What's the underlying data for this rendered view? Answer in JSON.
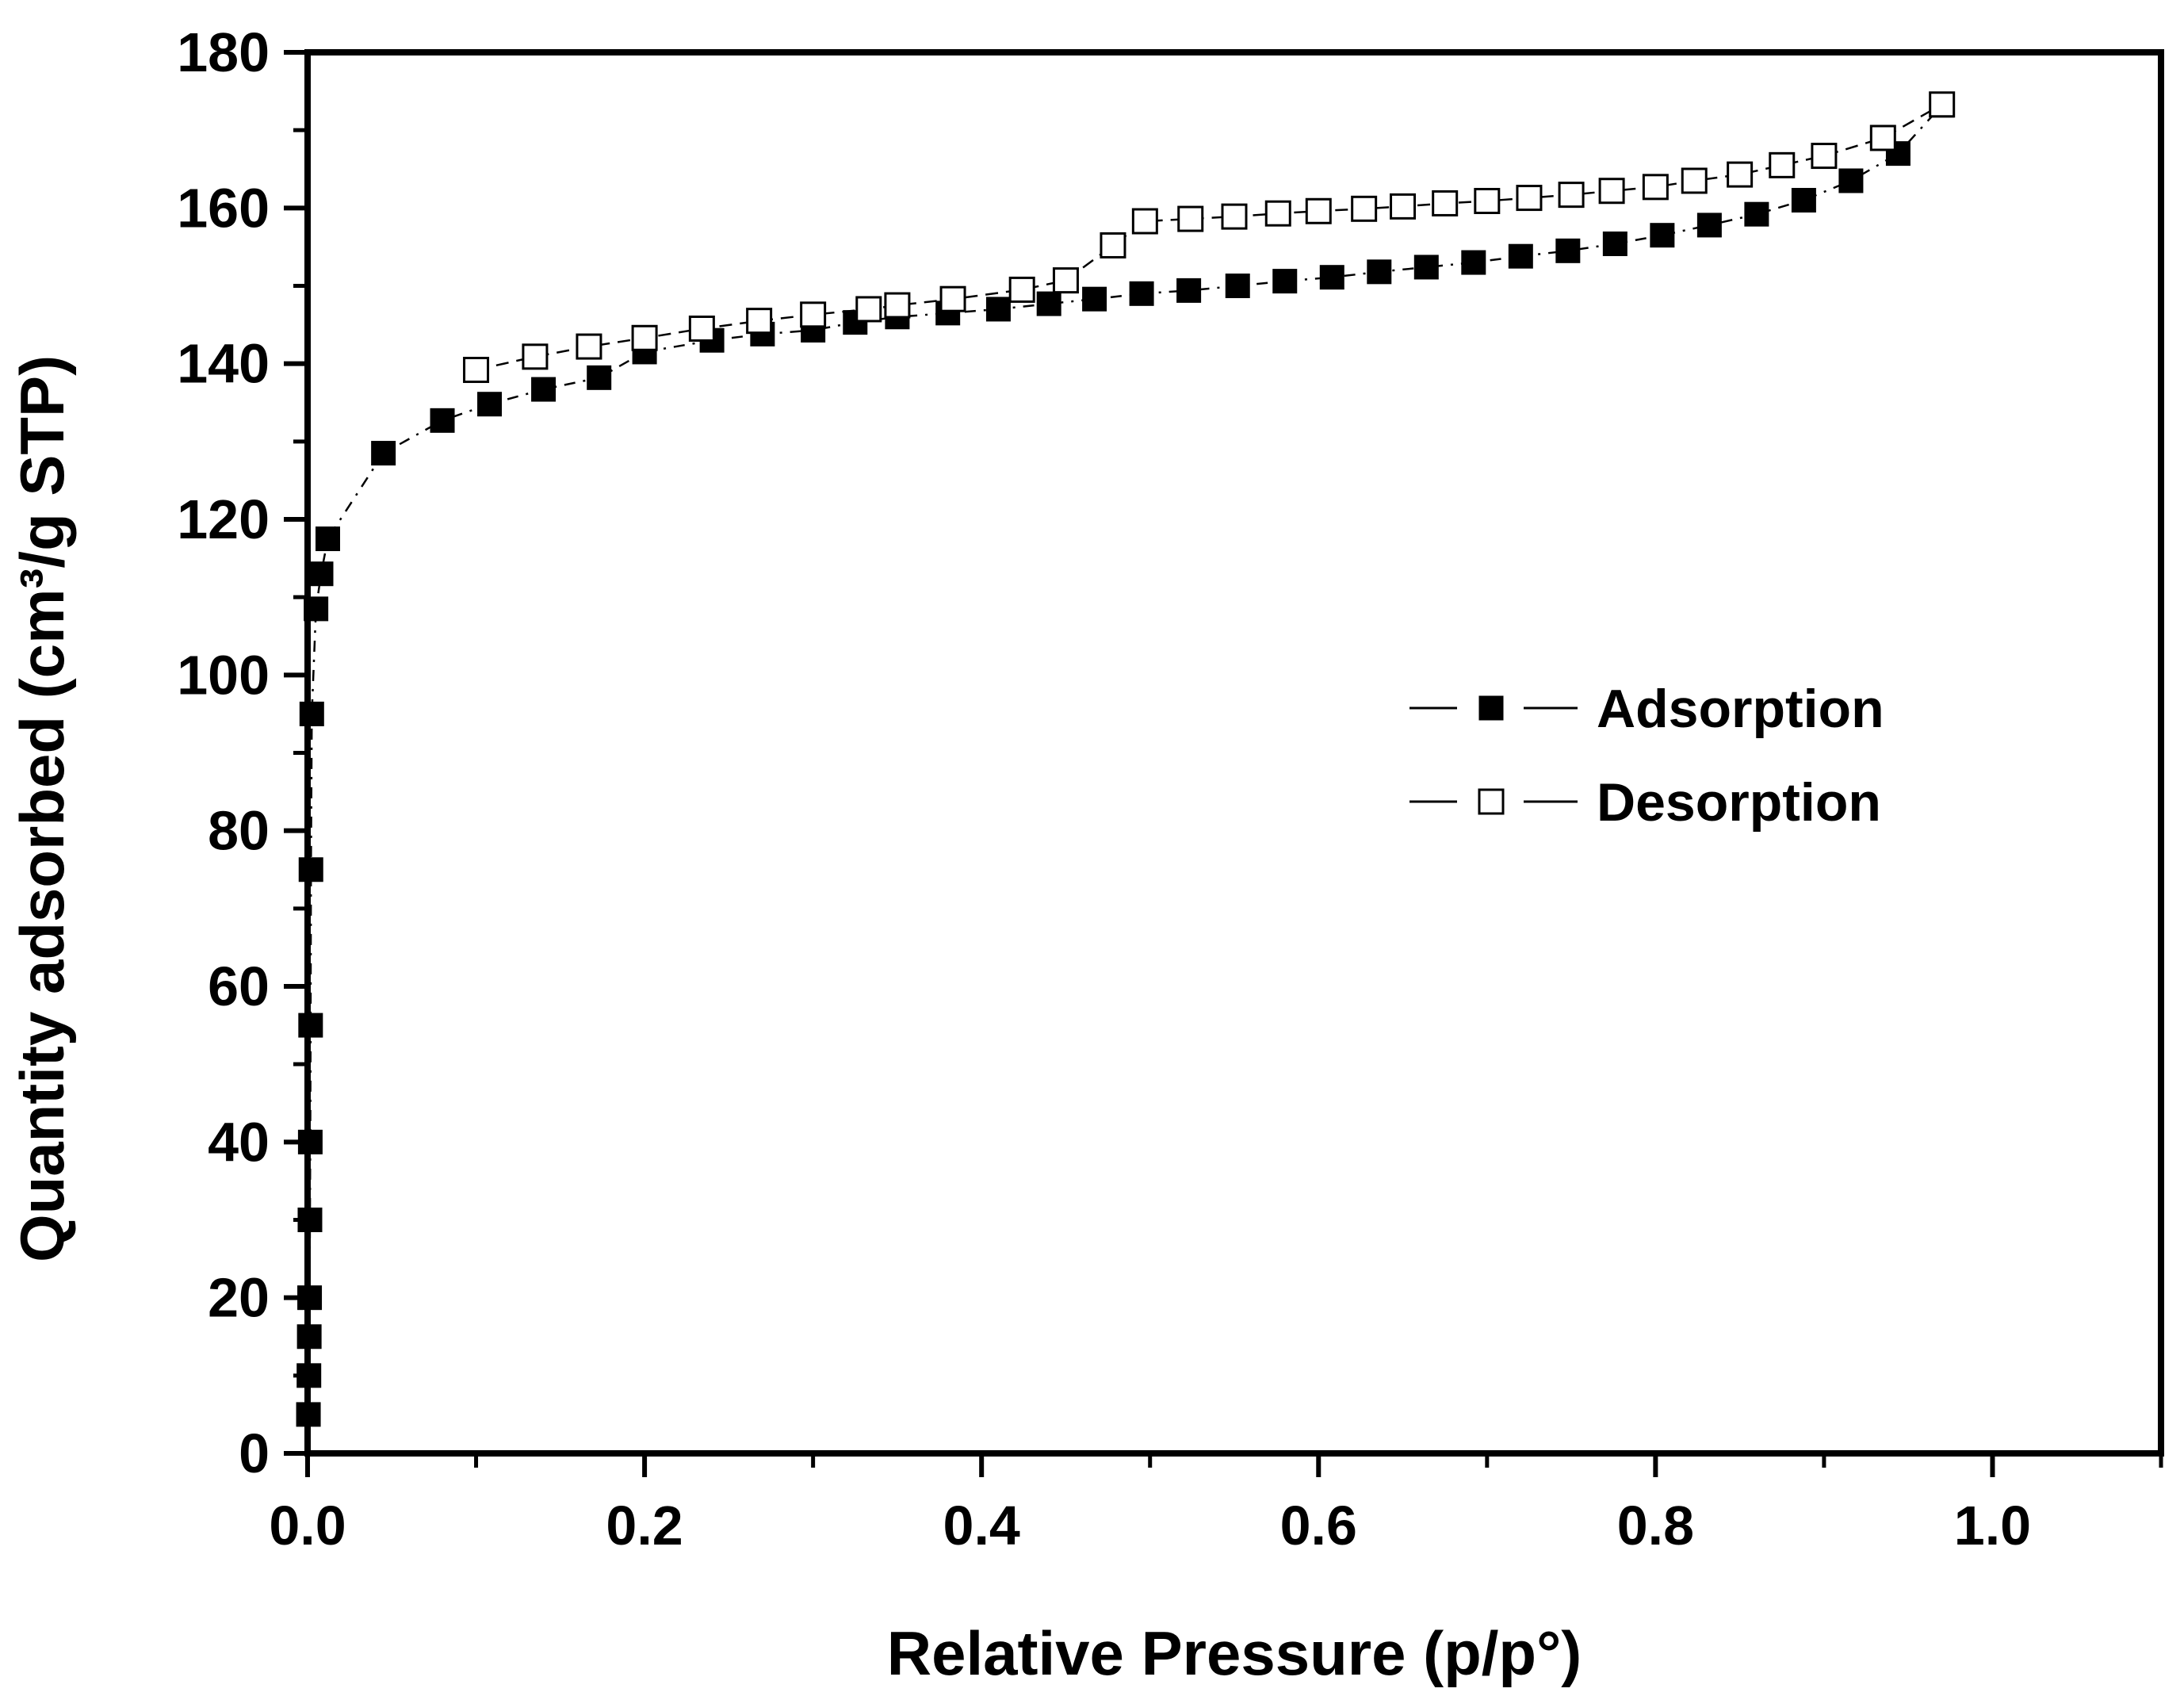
{
  "chart_data": {
    "type": "scatter",
    "title": "",
    "xlabel": "Relative Pressure (p/p°)",
    "ylabel": "Quantity adsorbed (cm³/g STP)",
    "xlim": [
      0,
      1.1
    ],
    "ylim": [
      0,
      180
    ],
    "x_ticks": [
      0.0,
      0.2,
      0.4,
      0.6,
      0.8,
      1.0
    ],
    "x_tick_labels": [
      "0.0",
      "0.2",
      "0.4",
      "0.6",
      "0.8",
      "1.0"
    ],
    "x_minor_ticks": [
      0.1,
      0.3,
      0.5,
      0.7,
      0.9,
      1.1
    ],
    "y_ticks": [
      0,
      20,
      40,
      60,
      80,
      100,
      120,
      140,
      160,
      180
    ],
    "y_tick_labels": [
      "0",
      "20",
      "40",
      "60",
      "80",
      "100",
      "120",
      "140",
      "160",
      "180"
    ],
    "y_minor_ticks": [
      10,
      30,
      50,
      70,
      90,
      110,
      130,
      150,
      170
    ],
    "grid": false,
    "legend_position": "center-right",
    "series": [
      {
        "name": "Adsorption",
        "marker": "filled-square",
        "color": "#000000",
        "x": [
          0.0005,
          0.0008,
          0.001,
          0.0012,
          0.0014,
          0.0016,
          0.0018,
          0.002,
          0.0025,
          0.005,
          0.008,
          0.012,
          0.045,
          0.08,
          0.108,
          0.14,
          0.173,
          0.2,
          0.24,
          0.27,
          0.3,
          0.325,
          0.35,
          0.38,
          0.41,
          0.44,
          0.467,
          0.495,
          0.523,
          0.552,
          0.58,
          0.608,
          0.636,
          0.664,
          0.692,
          0.72,
          0.748,
          0.776,
          0.804,
          0.832,
          0.86,
          0.888,
          0.916,
          0.944,
          0.97
        ],
        "y": [
          5,
          10,
          15,
          20,
          30,
          40,
          55,
          75,
          95,
          108.5,
          113,
          117.5,
          128.5,
          132.7,
          134.8,
          136.7,
          138.2,
          141.5,
          143,
          143.8,
          144.3,
          145.3,
          146,
          146.5,
          147,
          147.7,
          148.3,
          149,
          149.4,
          150,
          150.6,
          151.1,
          151.8,
          152.4,
          153,
          153.8,
          154.5,
          155.4,
          156.5,
          157.8,
          159.2,
          161,
          163.5,
          167,
          173.2
        ]
      },
      {
        "name": "Desorption",
        "marker": "open-square",
        "color": "#000000",
        "x": [
          0.1,
          0.135,
          0.167,
          0.2,
          0.234,
          0.268,
          0.3,
          0.333,
          0.35,
          0.383,
          0.424,
          0.45,
          0.478,
          0.497,
          0.524,
          0.55,
          0.576,
          0.6,
          0.627,
          0.65,
          0.675,
          0.7,
          0.725,
          0.75,
          0.774,
          0.8,
          0.823,
          0.85,
          0.875,
          0.9,
          0.935,
          0.97
        ],
        "y": [
          139.2,
          140.9,
          142.2,
          143.3,
          144.5,
          145.5,
          146.3,
          147,
          147.5,
          148.3,
          149.5,
          150.7,
          155.2,
          158.3,
          158.6,
          158.9,
          159.3,
          159.6,
          159.9,
          160.2,
          160.6,
          160.9,
          161.3,
          161.7,
          162.2,
          162.7,
          163.5,
          164.3,
          165.5,
          166.7,
          169,
          173.3
        ]
      }
    ]
  }
}
